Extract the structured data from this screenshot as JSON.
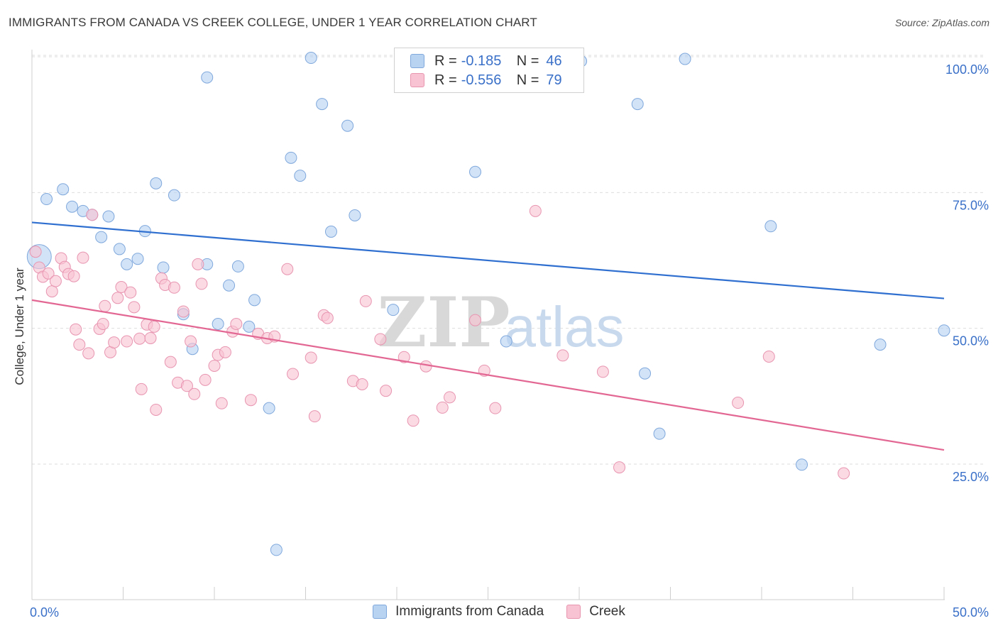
{
  "header": {
    "title": "IMMIGRANTS FROM CANADA VS CREEK COLLEGE, UNDER 1 YEAR CORRELATION CHART",
    "source": "Source: ZipAtlas.com"
  },
  "watermark": {
    "zip": "ZIP",
    "atlas": "atlas"
  },
  "legend": {
    "rows": [
      {
        "r_label": "R =",
        "r_value": "-0.185",
        "n_label": "N =",
        "n_value": "46"
      },
      {
        "r_label": "R =",
        "r_value": "-0.556",
        "n_label": "N =",
        "n_value": "79"
      }
    ]
  },
  "bottom_legend": {
    "series1": "Immigrants from Canada",
    "series2": "Creek"
  },
  "colors": {
    "blue_fill": "#b8d2f2",
    "blue_stroke": "#7fa8dc",
    "blue_line": "#2f6fcf",
    "pink_fill": "#f8c4d4",
    "pink_stroke": "#e895b0",
    "pink_line": "#e36793",
    "tick_label": "#3a70c8",
    "grid": "#dedede"
  },
  "chart_data": {
    "type": "scatter",
    "title": "IMMIGRANTS FROM CANADA VS CREEK COLLEGE, UNDER 1 YEAR CORRELATION CHART",
    "xlabel": "",
    "ylabel": "College, Under 1 year",
    "xlim": [
      0,
      50
    ],
    "ylim": [
      0,
      105
    ],
    "x_tick_labels": [
      "0.0%",
      "50.0%"
    ],
    "y_ticks": [
      25,
      50,
      75,
      100
    ],
    "y_tick_labels": [
      "25.0%",
      "50.0%",
      "75.0%",
      "100.0%"
    ],
    "grid": true,
    "legend_position": "top-center",
    "series": [
      {
        "name": "Immigrants from Canada",
        "color": "#b8d2f2",
        "trend": {
          "x": [
            0,
            50
          ],
          "y": [
            69.5,
            55.5
          ]
        },
        "points": [
          {
            "x": 0.4,
            "y": 63.2
          },
          {
            "x": 0.8,
            "y": 73.8
          },
          {
            "x": 1.7,
            "y": 75.6
          },
          {
            "x": 2.2,
            "y": 72.4
          },
          {
            "x": 2.8,
            "y": 71.6
          },
          {
            "x": 3.3,
            "y": 70.9
          },
          {
            "x": 3.8,
            "y": 66.8
          },
          {
            "x": 4.2,
            "y": 70.6
          },
          {
            "x": 4.8,
            "y": 64.6
          },
          {
            "x": 5.2,
            "y": 61.8
          },
          {
            "x": 5.8,
            "y": 62.8
          },
          {
            "x": 6.2,
            "y": 67.9
          },
          {
            "x": 6.8,
            "y": 76.7
          },
          {
            "x": 7.2,
            "y": 61.2
          },
          {
            "x": 7.8,
            "y": 74.5
          },
          {
            "x": 8.3,
            "y": 52.6
          },
          {
            "x": 8.8,
            "y": 46.2
          },
          {
            "x": 9.6,
            "y": 61.8
          },
          {
            "x": 9.6,
            "y": 96.2
          },
          {
            "x": 10.2,
            "y": 50.8
          },
          {
            "x": 10.8,
            "y": 57.9
          },
          {
            "x": 11.3,
            "y": 61.4
          },
          {
            "x": 11.9,
            "y": 50.3
          },
          {
            "x": 12.2,
            "y": 55.2
          },
          {
            "x": 13.0,
            "y": 35.3
          },
          {
            "x": 13.4,
            "y": 9.2
          },
          {
            "x": 14.2,
            "y": 81.4
          },
          {
            "x": 14.7,
            "y": 78.1
          },
          {
            "x": 15.3,
            "y": 99.8
          },
          {
            "x": 15.9,
            "y": 91.3
          },
          {
            "x": 16.4,
            "y": 67.8
          },
          {
            "x": 17.3,
            "y": 87.3
          },
          {
            "x": 17.7,
            "y": 70.8
          },
          {
            "x": 19.8,
            "y": 53.4
          },
          {
            "x": 24.3,
            "y": 78.8
          },
          {
            "x": 26.0,
            "y": 47.6
          },
          {
            "x": 29.7,
            "y": 99.8
          },
          {
            "x": 33.2,
            "y": 91.3
          },
          {
            "x": 33.6,
            "y": 41.7
          },
          {
            "x": 34.4,
            "y": 30.6
          },
          {
            "x": 35.8,
            "y": 99.6
          },
          {
            "x": 40.5,
            "y": 68.8
          },
          {
            "x": 42.2,
            "y": 24.9
          },
          {
            "x": 46.5,
            "y": 47.0
          },
          {
            "x": 50.0,
            "y": 49.6
          },
          {
            "x": 30.1,
            "y": 99.2
          }
        ]
      },
      {
        "name": "Creek",
        "color": "#f8c4d4",
        "trend": {
          "x": [
            0,
            50
          ],
          "y": [
            55.2,
            27.6
          ]
        },
        "points": [
          {
            "x": 0.2,
            "y": 64.1
          },
          {
            "x": 0.4,
            "y": 61.2
          },
          {
            "x": 0.6,
            "y": 59.5
          },
          {
            "x": 0.9,
            "y": 60.1
          },
          {
            "x": 1.1,
            "y": 56.8
          },
          {
            "x": 1.3,
            "y": 58.7
          },
          {
            "x": 1.6,
            "y": 62.9
          },
          {
            "x": 1.8,
            "y": 61.3
          },
          {
            "x": 2.0,
            "y": 60.0
          },
          {
            "x": 2.3,
            "y": 59.6
          },
          {
            "x": 2.4,
            "y": 49.8
          },
          {
            "x": 2.6,
            "y": 47.0
          },
          {
            "x": 2.8,
            "y": 63.0
          },
          {
            "x": 3.1,
            "y": 45.4
          },
          {
            "x": 3.3,
            "y": 70.9
          },
          {
            "x": 3.7,
            "y": 49.9
          },
          {
            "x": 3.9,
            "y": 50.8
          },
          {
            "x": 4.0,
            "y": 54.1
          },
          {
            "x": 4.3,
            "y": 45.6
          },
          {
            "x": 4.5,
            "y": 47.4
          },
          {
            "x": 4.7,
            "y": 55.6
          },
          {
            "x": 4.9,
            "y": 57.6
          },
          {
            "x": 5.2,
            "y": 47.6
          },
          {
            "x": 5.4,
            "y": 56.6
          },
          {
            "x": 5.6,
            "y": 53.9
          },
          {
            "x": 5.9,
            "y": 48.1
          },
          {
            "x": 6.0,
            "y": 38.8
          },
          {
            "x": 6.3,
            "y": 50.7
          },
          {
            "x": 6.5,
            "y": 48.2
          },
          {
            "x": 6.7,
            "y": 50.3
          },
          {
            "x": 6.8,
            "y": 35.0
          },
          {
            "x": 7.1,
            "y": 59.2
          },
          {
            "x": 7.3,
            "y": 58.0
          },
          {
            "x": 7.6,
            "y": 43.8
          },
          {
            "x": 7.8,
            "y": 57.5
          },
          {
            "x": 8.0,
            "y": 40.0
          },
          {
            "x": 8.3,
            "y": 53.1
          },
          {
            "x": 8.5,
            "y": 39.4
          },
          {
            "x": 8.7,
            "y": 47.6
          },
          {
            "x": 8.9,
            "y": 37.9
          },
          {
            "x": 9.1,
            "y": 61.8
          },
          {
            "x": 9.3,
            "y": 58.2
          },
          {
            "x": 9.5,
            "y": 40.5
          },
          {
            "x": 10.0,
            "y": 43.1
          },
          {
            "x": 10.2,
            "y": 45.1
          },
          {
            "x": 10.4,
            "y": 36.2
          },
          {
            "x": 10.6,
            "y": 45.6
          },
          {
            "x": 11.0,
            "y": 49.4
          },
          {
            "x": 11.2,
            "y": 50.8
          },
          {
            "x": 12.0,
            "y": 36.8
          },
          {
            "x": 12.4,
            "y": 49.0
          },
          {
            "x": 12.9,
            "y": 48.2
          },
          {
            "x": 13.3,
            "y": 48.5
          },
          {
            "x": 14.0,
            "y": 60.9
          },
          {
            "x": 14.3,
            "y": 41.6
          },
          {
            "x": 15.3,
            "y": 44.6
          },
          {
            "x": 15.5,
            "y": 33.8
          },
          {
            "x": 16.0,
            "y": 52.4
          },
          {
            "x": 16.2,
            "y": 51.9
          },
          {
            "x": 17.6,
            "y": 40.3
          },
          {
            "x": 18.1,
            "y": 39.7
          },
          {
            "x": 18.3,
            "y": 55.0
          },
          {
            "x": 19.1,
            "y": 48.0
          },
          {
            "x": 19.4,
            "y": 38.5
          },
          {
            "x": 20.4,
            "y": 44.7
          },
          {
            "x": 20.9,
            "y": 33.0
          },
          {
            "x": 21.6,
            "y": 43.0
          },
          {
            "x": 22.5,
            "y": 35.4
          },
          {
            "x": 22.9,
            "y": 37.3
          },
          {
            "x": 24.3,
            "y": 51.5
          },
          {
            "x": 24.8,
            "y": 42.2
          },
          {
            "x": 25.4,
            "y": 35.3
          },
          {
            "x": 27.6,
            "y": 71.6
          },
          {
            "x": 29.1,
            "y": 45.0
          },
          {
            "x": 31.3,
            "y": 42.0
          },
          {
            "x": 32.2,
            "y": 24.4
          },
          {
            "x": 38.7,
            "y": 36.3
          },
          {
            "x": 40.4,
            "y": 44.8
          },
          {
            "x": 44.5,
            "y": 23.3
          }
        ]
      }
    ]
  }
}
